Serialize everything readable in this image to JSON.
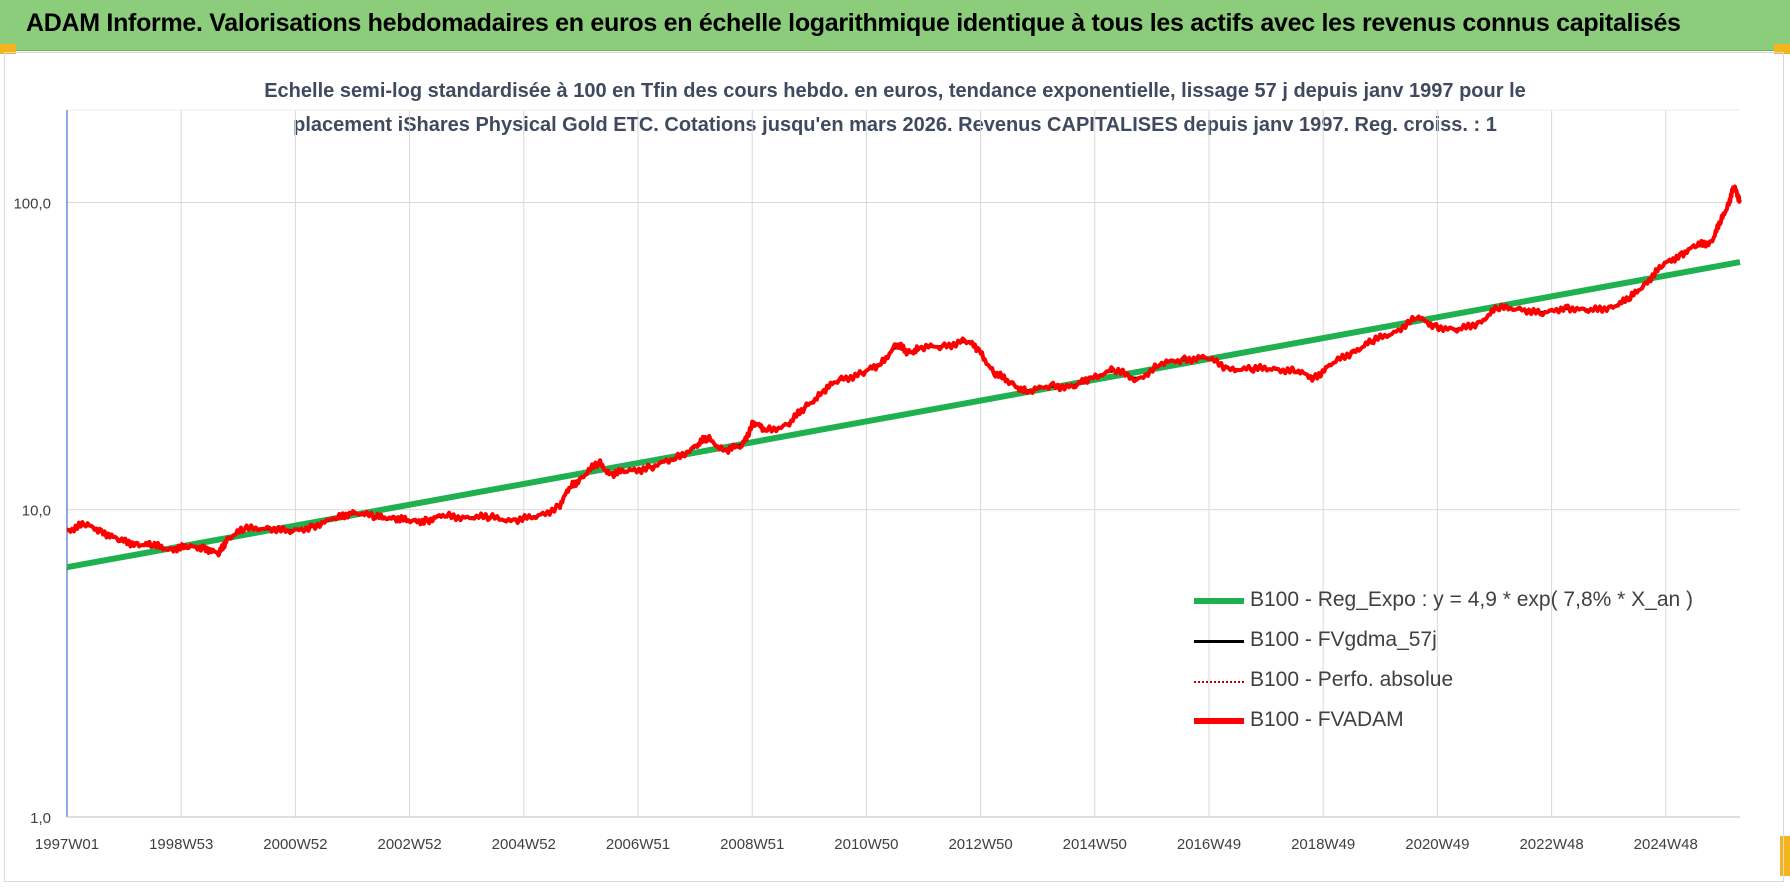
{
  "header": {
    "title": "ADAM Informe. Valorisations hebdomadaires en euros en échelle logarithmique identique à tous les actifs avec les revenus connus capitalisés"
  },
  "colors": {
    "banner": "#8ccd7b",
    "trend": "#1fb050",
    "fvadam": "#ff0000",
    "fvgdma": "#000000",
    "perfo": "#c00000",
    "grid": "#d9d9d9",
    "axis_text": "#404040"
  },
  "chart_data": {
    "type": "line",
    "title_line1": "Echelle semi-log standardisée à 100 en Tfin des cours hebdo. en euros, tendance exponentielle, lissage 57 j depuis janv 1997 pour le",
    "title_line2": "placement iShares Physical Gold ETC. Cotations jusqu'en mars 2026. Revenus CAPITALISES depuis janv 1997. Reg. croiss. : 1",
    "y_scale": "log",
    "ylim": [
      1,
      200
    ],
    "y_ticks": [
      "1,0",
      "10,0",
      "100,0"
    ],
    "x_range": [
      1997.0,
      2026.25
    ],
    "x_ticks": [
      "1997W01",
      "1998W53",
      "2000W52",
      "2002W52",
      "2004W52",
      "2006W51",
      "2008W51",
      "2010W50",
      "2012W50",
      "2014W50",
      "2016W49",
      "2018W49",
      "2020W49",
      "2022W48",
      "2024W48"
    ],
    "legend_position": "bottom-right",
    "grid": true,
    "series": [
      {
        "name": "B100 - Reg_Expo : y = 4,9 * exp( 7,8% *  X_an )",
        "role": "trend",
        "x": [
          1997.0,
          2026.25
        ],
        "y": [
          6.5,
          64.0
        ]
      },
      {
        "name": "B100 - FVgdma_57j",
        "role": "smooth"
      },
      {
        "name": "B100 - Perfo. absolue",
        "role": "perfo"
      },
      {
        "name": "B100 - FVADAM",
        "role": "main",
        "x": [
          1997.0,
          1997.3,
          1997.6,
          1997.9,
          1998.2,
          1998.5,
          1998.8,
          1999.1,
          1999.4,
          1999.65,
          1999.8,
          2000.1,
          2000.5,
          2000.9,
          2001.3,
          2001.7,
          2002.0,
          2002.4,
          2002.7,
          2003.0,
          2003.3,
          2003.6,
          2004.0,
          2004.4,
          2004.8,
          2005.2,
          2005.6,
          2005.8,
          2006.0,
          2006.3,
          2006.5,
          2006.8,
          2007.2,
          2007.6,
          2008.0,
          2008.2,
          2008.5,
          2008.8,
          2009.0,
          2009.2,
          2009.6,
          2009.9,
          2010.2,
          2010.5,
          2010.9,
          2011.2,
          2011.5,
          2011.7,
          2011.9,
          2012.3,
          2012.7,
          2012.95,
          2013.2,
          2013.5,
          2013.8,
          2014.2,
          2014.6,
          2014.9,
          2015.3,
          2015.7,
          2016.1,
          2016.5,
          2016.9,
          2017.3,
          2017.7,
          2018.1,
          2018.5,
          2018.8,
          2019.1,
          2019.5,
          2019.8,
          2020.2,
          2020.6,
          2020.9,
          2021.3,
          2021.7,
          2022.0,
          2022.4,
          2022.8,
          2023.2,
          2023.6,
          2024.0,
          2024.3,
          2024.6,
          2024.9,
          2025.2,
          2025.5,
          2025.75,
          2025.9,
          2026.05,
          2026.15,
          2026.25
        ],
        "y": [
          8.6,
          8.9,
          8.6,
          7.9,
          7.8,
          7.6,
          7.5,
          7.5,
          7.6,
          7.1,
          8.1,
          8.6,
          8.8,
          8.4,
          8.9,
          9.3,
          9.9,
          9.4,
          9.5,
          9.1,
          9.3,
          9.5,
          9.5,
          9.4,
          9.3,
          9.4,
          10.3,
          11.8,
          12.8,
          14.2,
          13.1,
          13.3,
          13.8,
          14.5,
          16.2,
          17.1,
          15.6,
          16.1,
          19.3,
          18.1,
          18.9,
          21.5,
          24.1,
          26.5,
          27.8,
          29.5,
          34.5,
          32.5,
          33.5,
          34.0,
          35.5,
          33.2,
          27.8,
          26.0,
          24.0,
          25.5,
          25.0,
          27.0,
          28.5,
          26.5,
          29.5,
          31.0,
          31.2,
          29.0,
          28.5,
          29.0,
          28.0,
          27.0,
          29.5,
          33.0,
          35.0,
          38.0,
          42.0,
          40.0,
          38.0,
          41.0,
          45.0,
          45.5,
          43.0,
          46.0,
          44.0,
          46.0,
          48.0,
          55.0,
          62.0,
          68.0,
          72.0,
          75.0,
          85.0,
          100.0,
          112.0,
          102.0
        ]
      }
    ]
  }
}
